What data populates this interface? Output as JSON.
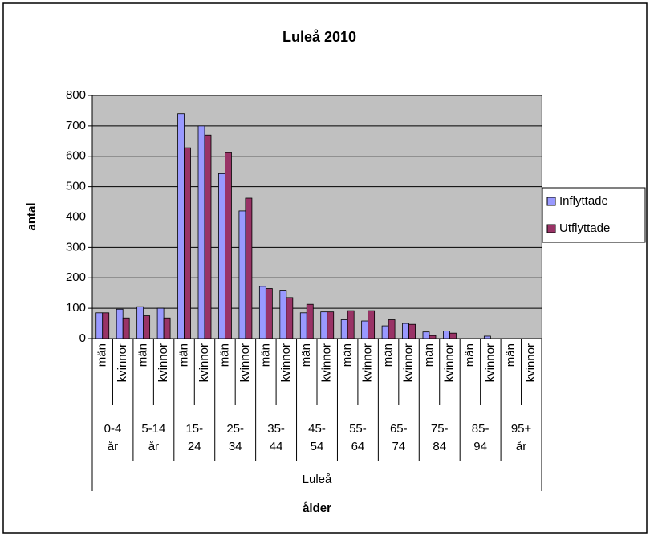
{
  "chart_data": {
    "type": "bar",
    "title": "Luleå 2010",
    "y_label": "antal",
    "x_label": "ålder",
    "categories": [
      "män",
      "kvinnor",
      "män",
      "kvinnor",
      "män",
      "kvinnor",
      "män",
      "kvinnor",
      "män",
      "kvinnor",
      "män",
      "kvinnor",
      "män",
      "kvinnor",
      "män",
      "kvinnor",
      "män",
      "kvinnor",
      "män",
      "kvinnor",
      "män",
      "kvinnor"
    ],
    "groups": [
      [
        "0-4",
        "år"
      ],
      [
        "5-14",
        "år"
      ],
      [
        "15-",
        "24"
      ],
      [
        "25-",
        "34"
      ],
      [
        "35-",
        "44"
      ],
      [
        "45-",
        "54"
      ],
      [
        "55-",
        "64"
      ],
      [
        "65-",
        "74"
      ],
      [
        "75-",
        "84"
      ],
      [
        "85-",
        "94"
      ],
      [
        "95+",
        "år"
      ]
    ],
    "top_group": "Luleå",
    "series": [
      {
        "name": "Inflyttade",
        "color": "#9999ff",
        "values": [
          85,
          97,
          105,
          100,
          740,
          700,
          543,
          420,
          172,
          157,
          85,
          88,
          62,
          58,
          42,
          50,
          22,
          25,
          0,
          8,
          0,
          0
        ]
      },
      {
        "name": "Utflyttade",
        "color": "#993366",
        "values": [
          85,
          68,
          75,
          68,
          628,
          670,
          612,
          462,
          165,
          135,
          113,
          88,
          92,
          92,
          62,
          47,
          10,
          18,
          0,
          0,
          0,
          0
        ]
      }
    ],
    "ylim": [
      0,
      800
    ],
    "yticks": [
      0,
      100,
      200,
      300,
      400,
      500,
      600,
      700,
      800
    ],
    "grid": true,
    "legend": "right"
  }
}
